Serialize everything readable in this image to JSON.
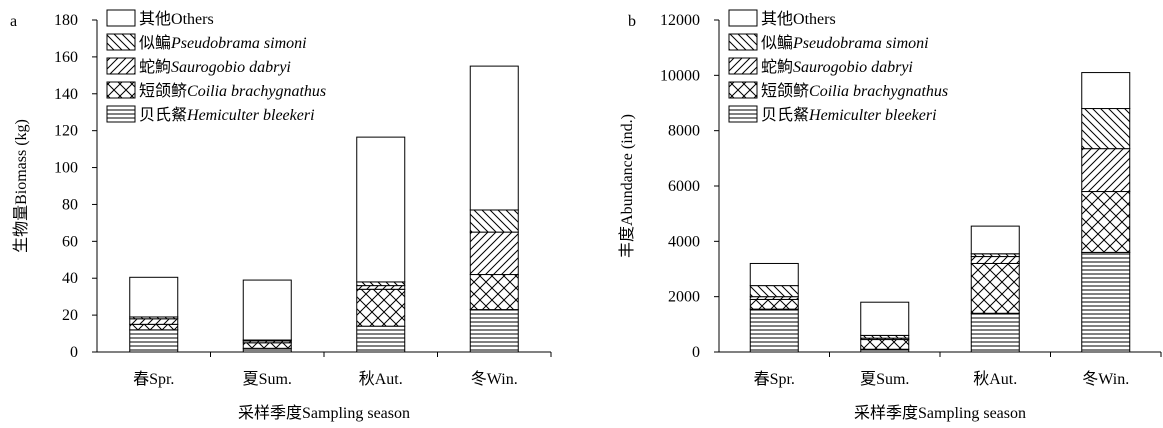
{
  "chart_data": [
    {
      "type": "bar",
      "stacked": true,
      "panel_label": "a",
      "categories": [
        "春Spr.",
        "夏Sum.",
        "秋Aut.",
        "冬Win."
      ],
      "xlabel": "采样季度Sampling season",
      "ylabel": "生物量Biomass (kg)",
      "ylim": [
        0,
        180
      ],
      "yticks": [
        0,
        20,
        40,
        60,
        80,
        100,
        120,
        140,
        160,
        180
      ],
      "grid": false,
      "legend_position": "top-left",
      "series": [
        {
          "name_cn": "贝氏䱗",
          "name_latin": "Hemiculter bleekeri",
          "pattern": "horizontal",
          "values": [
            12,
            2,
            14,
            23
          ]
        },
        {
          "name_cn": "短颌鲚",
          "name_latin": "Coilia brachygnathus",
          "pattern": "crosshatch",
          "values": [
            3,
            3,
            20,
            19
          ]
        },
        {
          "name_cn": "蛇鮈",
          "name_latin": "Saurogobio dabryi",
          "pattern": "forward-diagonal",
          "values": [
            3,
            1,
            2,
            23
          ]
        },
        {
          "name_cn": "似鳊",
          "name_latin": "Pseudobrama simoni",
          "pattern": "backward-diagonal",
          "values": [
            1,
            0.5,
            2,
            12
          ]
        },
        {
          "name_cn": "其他",
          "name_latin": "Others",
          "pattern": "none",
          "values": [
            21.5,
            32.5,
            78.5,
            78
          ]
        }
      ]
    },
    {
      "type": "bar",
      "stacked": true,
      "panel_label": "b",
      "categories": [
        "春Spr.",
        "夏Sum.",
        "秋Aut.",
        "冬Win."
      ],
      "xlabel": "采样季度Sampling season",
      "ylabel": "丰度Abundance (ind.)",
      "ylim": [
        0,
        12000
      ],
      "yticks": [
        0,
        2000,
        4000,
        6000,
        8000,
        10000,
        12000
      ],
      "grid": false,
      "legend_position": "top-left",
      "series": [
        {
          "name_cn": "贝氏䱗",
          "name_latin": "Hemiculter bleekeri",
          "pattern": "horizontal",
          "values": [
            1550,
            100,
            1400,
            3600
          ]
        },
        {
          "name_cn": "短颌鲚",
          "name_latin": "Coilia brachygnathus",
          "pattern": "crosshatch",
          "values": [
            350,
            350,
            1800,
            2200
          ]
        },
        {
          "name_cn": "蛇鮈",
          "name_latin": "Saurogobio dabryi",
          "pattern": "forward-diagonal",
          "values": [
            100,
            50,
            250,
            1550
          ]
        },
        {
          "name_cn": "似鳊",
          "name_latin": "Pseudobrama simoni",
          "pattern": "backward-diagonal",
          "values": [
            400,
            100,
            100,
            1450
          ]
        },
        {
          "name_cn": "其他",
          "name_latin": "Others",
          "pattern": "none",
          "values": [
            800,
            1200,
            1000,
            1300
          ]
        }
      ]
    }
  ]
}
